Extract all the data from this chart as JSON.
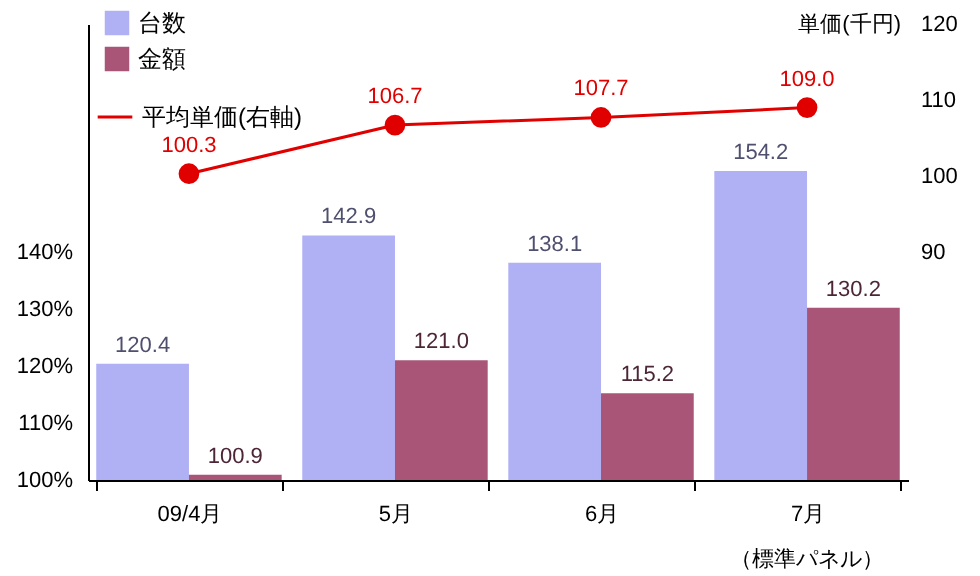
{
  "chart_data": {
    "type": "bar",
    "categories": [
      "09/4月",
      "5月",
      "6月",
      "7月"
    ],
    "series": [
      {
        "name": "台数",
        "color": "#b0b0f5",
        "values": [
          120.4,
          142.9,
          138.1,
          154.2
        ],
        "value_labels": [
          "120.4",
          "142.9",
          "138.1",
          "154.2"
        ]
      },
      {
        "name": "金額",
        "color": "#a85578",
        "values": [
          100.9,
          121.0,
          115.2,
          130.2
        ],
        "value_labels": [
          "100.9",
          "121.0",
          "115.2",
          "130.2"
        ]
      },
      {
        "name": "平均単価(右軸)",
        "type": "line",
        "axis": "y2",
        "color": "#e00000",
        "values": [
          100.3,
          106.7,
          107.7,
          109.0
        ],
        "value_labels": [
          "100.3",
          "106.7",
          "107.7",
          "109.0"
        ]
      }
    ],
    "annotations": [
      "（標準パネル）"
    ],
    "ylim": [
      100,
      180
    ],
    "yticks": [
      {
        "value": 100,
        "label": "100%"
      },
      {
        "value": 110,
        "label": "110%"
      },
      {
        "value": 120,
        "label": "120%"
      },
      {
        "value": 130,
        "label": "130%"
      },
      {
        "value": 140,
        "label": "140%"
      }
    ],
    "y2label": "単価(千円)",
    "y2lim": [
      60,
      120
    ],
    "y2ticks": [
      90,
      100,
      110,
      120
    ],
    "legend": "top left",
    "marker": "circle",
    "grid": false
  }
}
